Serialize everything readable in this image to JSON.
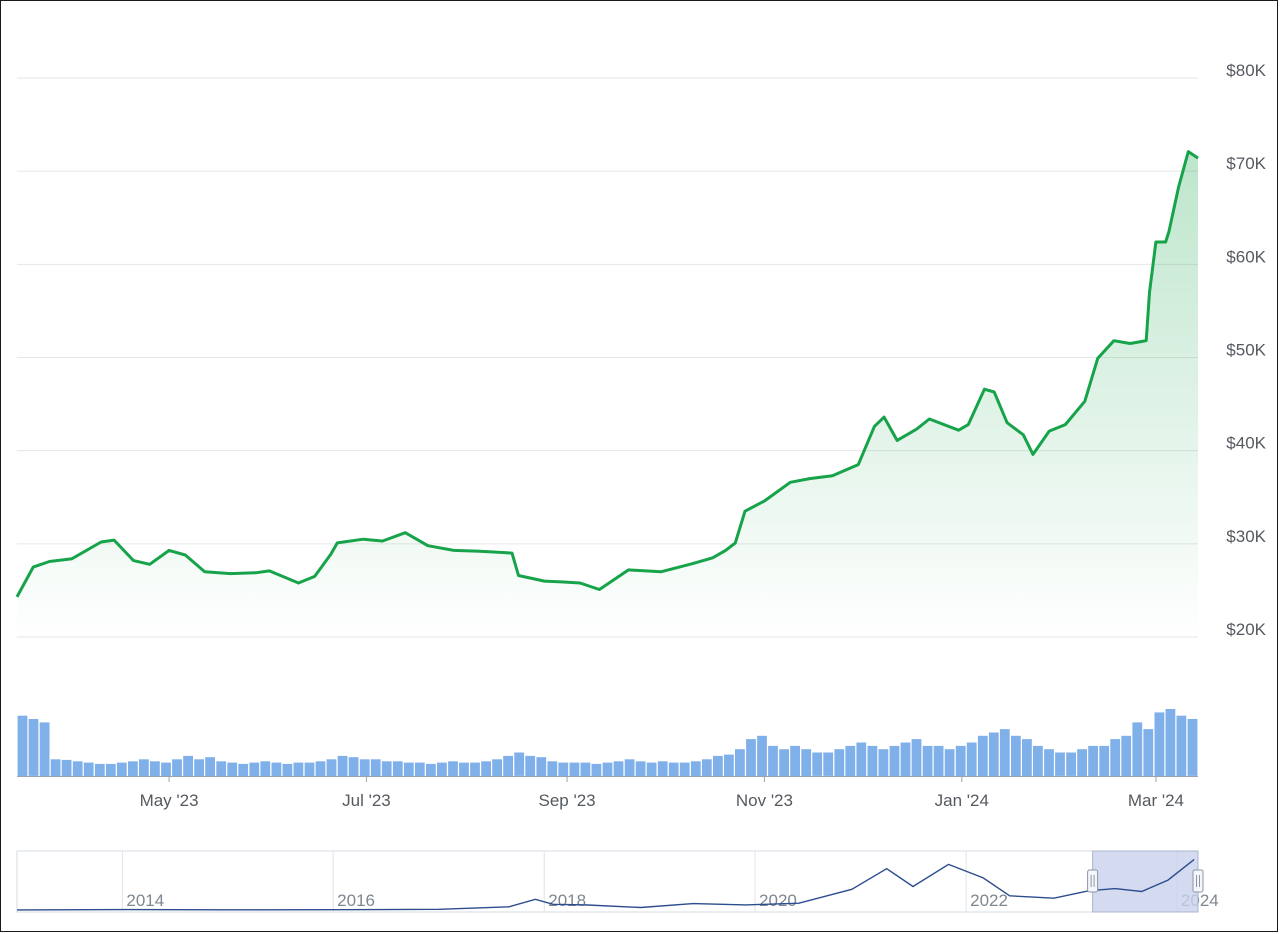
{
  "chart_data": {
    "type": "line",
    "colors": {
      "price_line": "#16a34a",
      "area_fill": "#16a34a",
      "volume_bars": "#7fb0ea",
      "navigator_line": "#2c4d8e",
      "navigator_selection": "#c9d2ec",
      "grid": "#e6e6e6"
    },
    "price_axis": {
      "position": "right",
      "ylim": [
        20000,
        82000
      ],
      "ticks": [
        20000,
        30000,
        40000,
        50000,
        60000,
        70000,
        80000
      ],
      "tick_labels": [
        "$20K",
        "$30K",
        "$40K",
        "$50K",
        "$60K",
        "$70K",
        "$80K"
      ]
    },
    "time_axis": {
      "xlim": [
        "2023-03-15",
        "2024-03-14"
      ],
      "ticks": [
        "2023-05-01",
        "2023-07-01",
        "2023-09-01",
        "2023-11-01",
        "2024-01-01",
        "2024-03-01"
      ],
      "tick_labels": [
        "May '23",
        "Jul '23",
        "Sep '23",
        "Nov '23",
        "Jan '24",
        "Mar '24"
      ]
    },
    "series": [
      {
        "x": [
          "2023-03-15",
          "2023-03-20",
          "2023-03-25",
          "2023-04-01",
          "2023-04-10",
          "2023-04-14",
          "2023-04-20",
          "2023-04-25",
          "2023-05-01",
          "2023-05-06",
          "2023-05-12",
          "2023-05-20",
          "2023-05-28",
          "2023-06-01",
          "2023-06-10",
          "2023-06-15",
          "2023-06-20",
          "2023-06-22",
          "2023-06-30",
          "2023-07-06",
          "2023-07-13",
          "2023-07-20",
          "2023-07-28",
          "2023-08-05",
          "2023-08-15",
          "2023-08-17",
          "2023-08-25",
          "2023-08-31",
          "2023-09-05",
          "2023-09-11",
          "2023-09-20",
          "2023-09-30",
          "2023-10-10",
          "2023-10-16",
          "2023-10-20",
          "2023-10-23",
          "2023-10-26",
          "2023-11-01",
          "2023-11-09",
          "2023-11-15",
          "2023-11-22",
          "2023-11-30",
          "2023-12-05",
          "2023-12-08",
          "2023-12-12",
          "2023-12-18",
          "2023-12-22",
          "2023-12-31",
          "2024-01-03",
          "2024-01-08",
          "2024-01-11",
          "2024-01-15",
          "2024-01-20",
          "2024-01-23",
          "2024-01-28",
          "2024-02-02",
          "2024-02-08",
          "2024-02-12",
          "2024-02-17",
          "2024-02-22",
          "2024-02-27",
          "2024-02-28",
          "2024-03-01",
          "2024-03-04",
          "2024-03-05",
          "2024-03-08",
          "2024-03-11",
          "2024-03-14"
        ],
        "values": [
          24300,
          27500,
          28100,
          28400,
          30200,
          30400,
          28200,
          27800,
          29300,
          28800,
          27000,
          26800,
          26900,
          27100,
          25800,
          26500,
          28900,
          30100,
          30500,
          30300,
          31200,
          29800,
          29300,
          29200,
          29000,
          26600,
          26000,
          25900,
          25800,
          25100,
          27200,
          27000,
          27900,
          28500,
          29300,
          30100,
          33500,
          34600,
          36600,
          37000,
          37300,
          38500,
          42600,
          43600,
          41100,
          42300,
          43400,
          42200,
          42800,
          46600,
          46300,
          43000,
          41700,
          39600,
          42100,
          42800,
          45300,
          49900,
          51800,
          51500,
          51800,
          57000,
          62400,
          62400,
          63500,
          68300,
          72100,
          71400
        ]
      }
    ],
    "volume": {
      "unit": "relative",
      "x_range": [
        "2023-03-15",
        "2024-03-14"
      ],
      "relative_levels": [
        0.9,
        0.85,
        0.8,
        0.25,
        0.24,
        0.22,
        0.2,
        0.18,
        0.18,
        0.2,
        0.22,
        0.25,
        0.22,
        0.2,
        0.25,
        0.3,
        0.25,
        0.28,
        0.22,
        0.2,
        0.18,
        0.2,
        0.22,
        0.2,
        0.18,
        0.2,
        0.2,
        0.22,
        0.25,
        0.3,
        0.28,
        0.25,
        0.25,
        0.22,
        0.22,
        0.2,
        0.2,
        0.18,
        0.2,
        0.22,
        0.2,
        0.2,
        0.22,
        0.25,
        0.3,
        0.35,
        0.3,
        0.28,
        0.22,
        0.2,
        0.2,
        0.2,
        0.18,
        0.2,
        0.22,
        0.25,
        0.22,
        0.2,
        0.22,
        0.2,
        0.2,
        0.22,
        0.25,
        0.3,
        0.32,
        0.4,
        0.55,
        0.6,
        0.45,
        0.4,
        0.45,
        0.4,
        0.35,
        0.35,
        0.4,
        0.45,
        0.5,
        0.45,
        0.4,
        0.45,
        0.5,
        0.55,
        0.45,
        0.45,
        0.4,
        0.45,
        0.5,
        0.6,
        0.65,
        0.7,
        0.6,
        0.55,
        0.45,
        0.4,
        0.35,
        0.35,
        0.4,
        0.45,
        0.45,
        0.55,
        0.6,
        0.8,
        0.7,
        0.95,
        1.0,
        0.9,
        0.85
      ]
    },
    "navigator": {
      "x_ticks": [
        "2014",
        "2016",
        "2018",
        "2020",
        "2022",
        "2024"
      ],
      "series_x": [
        "2013",
        "2014",
        "2015",
        "2016",
        "2017",
        "2017-09",
        "2017-12",
        "2018-02",
        "2018-06",
        "2018-12",
        "2019-06",
        "2019-12",
        "2020-06",
        "2020-12",
        "2021-04",
        "2021-07",
        "2021-11",
        "2022-03",
        "2022-06",
        "2022-11",
        "2023-03",
        "2023-06",
        "2023-09",
        "2023-12",
        "2024-03"
      ],
      "series_values": [
        100,
        600,
        300,
        450,
        1000,
        4500,
        15000,
        8000,
        7000,
        3500,
        9000,
        7200,
        9500,
        29000,
        58000,
        33000,
        64000,
        45000,
        20000,
        16500,
        27000,
        30000,
        26000,
        42000,
        71000
      ],
      "selected_range": [
        "2023-03-15",
        "2024-03-14"
      ]
    }
  }
}
